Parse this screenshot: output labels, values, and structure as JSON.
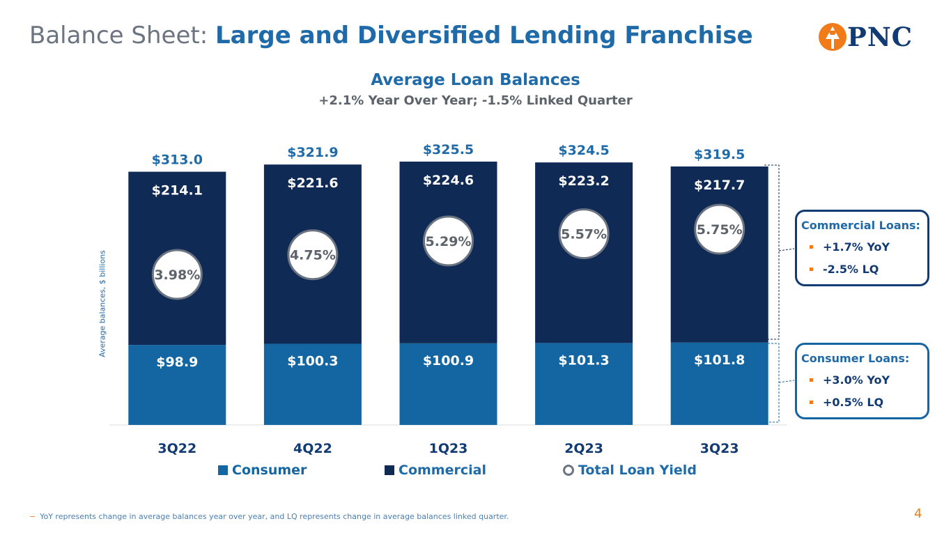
{
  "header": {
    "title_prefix": "Balance Sheet:",
    "title_main": "Large and Diversified Lending Franchise",
    "logo_text": "PNC"
  },
  "colors": {
    "consumer": "#1466a3",
    "commercial": "#0f2a55",
    "accent_orange": "#f07b18",
    "title_blue": "#1f6aa8",
    "yield_circle_border": "#6b7480"
  },
  "chart_data": {
    "type": "bar",
    "stacked": true,
    "title": "Average Loan Balances",
    "subtitle": "+2.1% Year Over Year; -1.5% Linked Quarter",
    "ylabel": "Average balances, $ billions",
    "xlabel": "",
    "ylim": [
      0,
      325.5
    ],
    "categories": [
      "3Q22",
      "4Q22",
      "1Q23",
      "2Q23",
      "3Q23"
    ],
    "series": [
      {
        "name": "Consumer",
        "values": [
          98.9,
          100.3,
          100.9,
          101.3,
          101.8
        ],
        "labels": [
          "$98.9",
          "$100.3",
          "$100.9",
          "$101.3",
          "$101.8"
        ]
      },
      {
        "name": "Commercial",
        "values": [
          214.1,
          221.6,
          224.6,
          223.2,
          217.7
        ],
        "labels": [
          "$214.1",
          "$221.6",
          "$224.6",
          "$223.2",
          "$217.7"
        ]
      }
    ],
    "totals": [
      313.0,
      321.9,
      325.5,
      324.5,
      319.5
    ],
    "total_labels": [
      "$313.0",
      "$321.9",
      "$325.5",
      "$324.5",
      "$319.5"
    ],
    "yield_series": {
      "name": "Total Loan Yield",
      "values": [
        3.98,
        4.75,
        5.29,
        5.57,
        5.75
      ],
      "labels": [
        "3.98%",
        "4.75%",
        "5.29%",
        "5.57%",
        "5.75%"
      ]
    },
    "legend": [
      "Consumer",
      "Commercial",
      "Total Loan Yield"
    ],
    "legend_position": "bottom",
    "grid": false
  },
  "callouts": {
    "commercial": {
      "title": "Commercial Loans:",
      "items": [
        "+1.7% YoY",
        "-2.5% LQ"
      ]
    },
    "consumer": {
      "title": "Consumer Loans:",
      "items": [
        "+3.0% YoY",
        "+0.5% LQ"
      ]
    }
  },
  "footnote": "YoY represents change in average balances year over year, and LQ represents change in average balances linked quarter.",
  "footnote_marker": "−",
  "page_number": "4"
}
